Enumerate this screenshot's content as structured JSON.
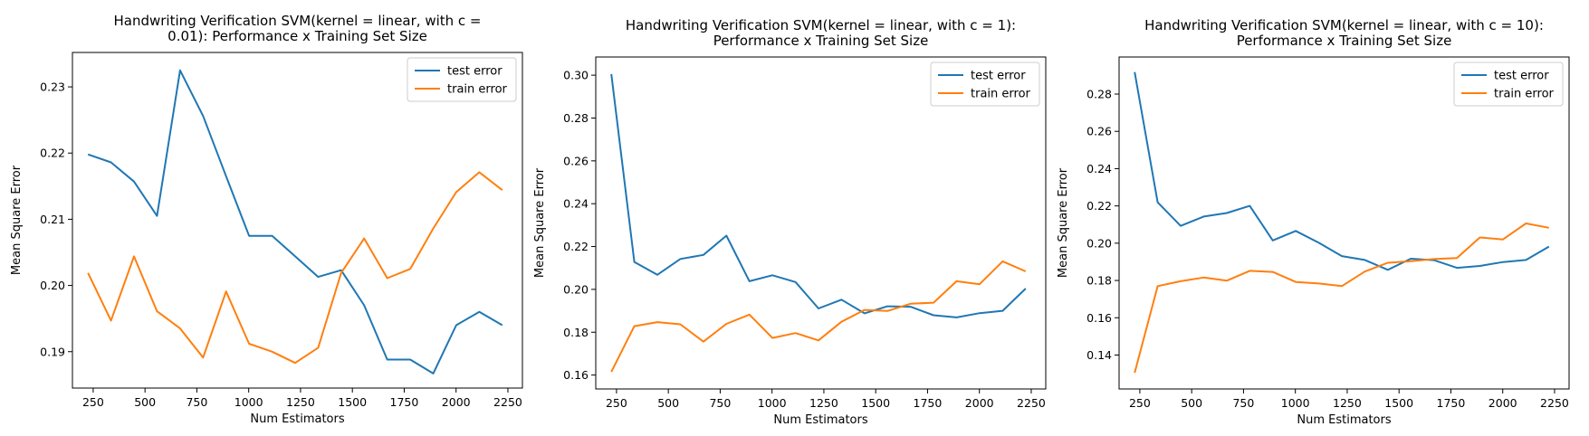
{
  "chart_data": [
    {
      "type": "line",
      "title_lines": [
        "Handwriting Verification SVM(kernel = linear, with c =",
        "0.01): Performance x Training Set Size"
      ],
      "xlabel": "Num Estimators",
      "ylabel": "Mean Square Error",
      "xlim": [
        150,
        2320
      ],
      "ylim": [
        0.1845,
        0.2352
      ],
      "xticks": [
        250,
        500,
        750,
        1000,
        1250,
        1500,
        1750,
        2000,
        2250
      ],
      "yticks": [
        0.19,
        0.2,
        0.21,
        0.22,
        0.23
      ],
      "ytick_labels": [
        "0.19",
        "0.20",
        "0.21",
        "0.22",
        "0.23"
      ],
      "legend_position": "upper-right",
      "x": [
        225,
        336,
        447,
        558,
        669,
        780,
        891,
        1002,
        1113,
        1224,
        1335,
        1446,
        1557,
        1668,
        1779,
        1890,
        2001,
        2112,
        2223
      ],
      "series": [
        {
          "name": "test error",
          "color": "#1f77b4",
          "values": [
            0.2198,
            0.2186,
            0.2157,
            0.2105,
            0.2325,
            0.2256,
            0.2165,
            0.2075,
            0.2075,
            0.2044,
            0.2013,
            0.2023,
            0.197,
            0.1888,
            0.1888,
            0.1867,
            0.194,
            0.196,
            0.194
          ]
        },
        {
          "name": "train error",
          "color": "#ff7f0e",
          "values": [
            0.2019,
            0.1947,
            0.2044,
            0.1961,
            0.1935,
            0.1891,
            0.1991,
            0.1912,
            0.19,
            0.1883,
            0.1906,
            0.2019,
            0.2071,
            0.2011,
            0.2025,
            0.2086,
            0.2141,
            0.2171,
            0.2144
          ]
        }
      ]
    },
    {
      "type": "line",
      "title_lines": [
        "Handwriting Verification SVM(kernel = linear, with c = 1):",
        "Performance x Training Set Size"
      ],
      "xlabel": "Num Estimators",
      "ylabel": "Mean Square Error",
      "xlim": [
        150,
        2320
      ],
      "ylim": [
        0.1535,
        0.3085
      ],
      "xticks": [
        250,
        500,
        750,
        1000,
        1250,
        1500,
        1750,
        2000,
        2250
      ],
      "yticks": [
        0.16,
        0.18,
        0.2,
        0.22,
        0.24,
        0.26,
        0.28,
        0.3
      ],
      "ytick_labels": [
        "0.16",
        "0.18",
        "0.20",
        "0.22",
        "0.24",
        "0.26",
        "0.28",
        "0.30"
      ],
      "legend_position": "upper-right",
      "x": [
        225,
        336,
        447,
        558,
        669,
        780,
        891,
        1002,
        1113,
        1224,
        1335,
        1446,
        1557,
        1668,
        1779,
        1890,
        2001,
        2112,
        2223
      ],
      "series": [
        {
          "name": "test error",
          "color": "#1f77b4",
          "values": [
            0.3005,
            0.2128,
            0.2068,
            0.2142,
            0.2161,
            0.2251,
            0.2038,
            0.2066,
            0.2034,
            0.1911,
            0.1952,
            0.1888,
            0.1921,
            0.1919,
            0.1879,
            0.1869,
            0.1889,
            0.19,
            0.2004
          ]
        },
        {
          "name": "train error",
          "color": "#ff7f0e",
          "values": [
            0.1615,
            0.1828,
            0.1847,
            0.1837,
            0.1756,
            0.1839,
            0.1882,
            0.1773,
            0.1796,
            0.1762,
            0.1849,
            0.1904,
            0.1899,
            0.1933,
            0.1938,
            0.2038,
            0.2024,
            0.2131,
            0.2084
          ]
        }
      ]
    },
    {
      "type": "line",
      "title_lines": [
        "Handwriting Verification SVM(kernel = linear, with c = 10):",
        "Performance x Training Set Size"
      ],
      "xlabel": "Num Estimators",
      "ylabel": "Mean Square Error",
      "xlim": [
        150,
        2320
      ],
      "ylim": [
        0.1218,
        0.2999
      ],
      "xticks": [
        250,
        500,
        750,
        1000,
        1250,
        1500,
        1750,
        2000,
        2250
      ],
      "yticks": [
        0.14,
        0.16,
        0.18,
        0.2,
        0.22,
        0.24,
        0.26,
        0.28
      ],
      "ytick_labels": [
        "0.14",
        "0.16",
        "0.18",
        "0.20",
        "0.22",
        "0.24",
        "0.26",
        "0.28"
      ],
      "legend_position": "upper-right",
      "x": [
        225,
        336,
        447,
        558,
        669,
        780,
        891,
        1002,
        1113,
        1224,
        1335,
        1446,
        1557,
        1668,
        1779,
        1890,
        2001,
        2112,
        2223
      ],
      "series": [
        {
          "name": "test error",
          "color": "#1f77b4",
          "values": [
            0.2918,
            0.2219,
            0.2093,
            0.2143,
            0.2162,
            0.22,
            0.2015,
            0.2066,
            0.2002,
            0.1931,
            0.191,
            0.1857,
            0.1917,
            0.1909,
            0.1868,
            0.1878,
            0.1899,
            0.191,
            0.1982
          ]
        },
        {
          "name": "train error",
          "color": "#ff7f0e",
          "values": [
            0.1305,
            0.177,
            0.1796,
            0.1816,
            0.1799,
            0.1852,
            0.1846,
            0.1792,
            0.1784,
            0.177,
            0.1848,
            0.1895,
            0.1903,
            0.1915,
            0.192,
            0.2031,
            0.202,
            0.2106,
            0.2083
          ]
        }
      ]
    }
  ]
}
